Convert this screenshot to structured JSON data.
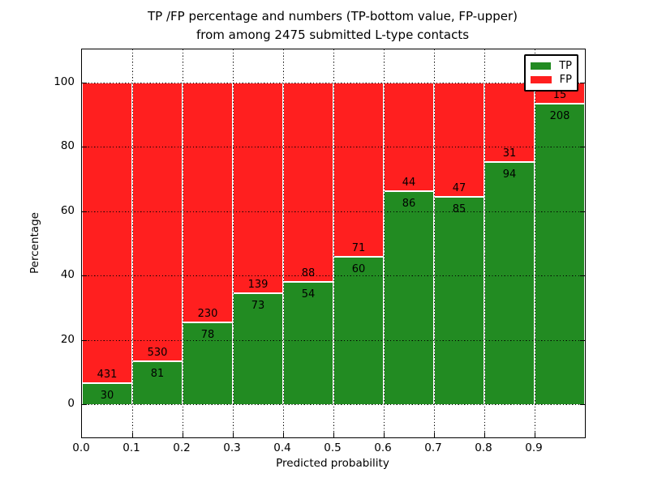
{
  "title": {
    "line1": "TP /FP percentage and numbers (TP-bottom value, FP-upper)",
    "line2": "from among 2475 submitted L-type contacts"
  },
  "axes": {
    "xlabel": "Predicted probability",
    "ylabel": "Percentage",
    "xtick_labels": [
      "0.0",
      "0.1",
      "0.2",
      "0.3",
      "0.4",
      "0.5",
      "0.6",
      "0.7",
      "0.8",
      "0.9"
    ],
    "ytick_values": [
      0,
      20,
      40,
      60,
      80,
      100
    ]
  },
  "legend": {
    "items": [
      {
        "label": "TP",
        "color": "#228B22"
      },
      {
        "label": "FP",
        "color": "#FF1F1F"
      }
    ],
    "position": "upper right"
  },
  "colors": {
    "tp_green": "#228B22",
    "fp_red": "#FF1F1F",
    "background": "#FFFFFF",
    "grid": "#000000",
    "bar_edge": "#FFFFFF"
  },
  "chart_data": {
    "type": "bar",
    "stacked": true,
    "normalized": "each bar stacks to 100%",
    "title": "TP /FP percentage and numbers (TP-bottom value, FP-upper) from among 2475 submitted L-type contacts",
    "xlabel": "Predicted probability",
    "ylabel": "Percentage",
    "total_contacts": 2475,
    "bins": [
      "0.0-0.1",
      "0.1-0.2",
      "0.2-0.3",
      "0.3-0.4",
      "0.4-0.5",
      "0.5-0.6",
      "0.6-0.7",
      "0.7-0.8",
      "0.8-0.9",
      "0.9-1.0"
    ],
    "series": [
      {
        "name": "TP",
        "color": "#228B22",
        "counts": [
          30,
          81,
          78,
          73,
          54,
          60,
          86,
          85,
          94,
          208
        ]
      },
      {
        "name": "FP",
        "color": "#FF1F1F",
        "counts": [
          431,
          530,
          230,
          139,
          88,
          71,
          44,
          47,
          31,
          15
        ]
      }
    ],
    "tp_percent_approx": [
      6.5,
      13.3,
      25.3,
      34.4,
      38.0,
      45.8,
      66.2,
      64.4,
      75.2,
      93.3
    ],
    "xlim": [
      0.0,
      1.0
    ],
    "ylim": [
      -10.5,
      110
    ],
    "yticks": [
      0,
      20,
      40,
      60,
      80,
      100
    ],
    "grid": "black dotted at every x tick and y tick",
    "legend_position": "upper right"
  }
}
